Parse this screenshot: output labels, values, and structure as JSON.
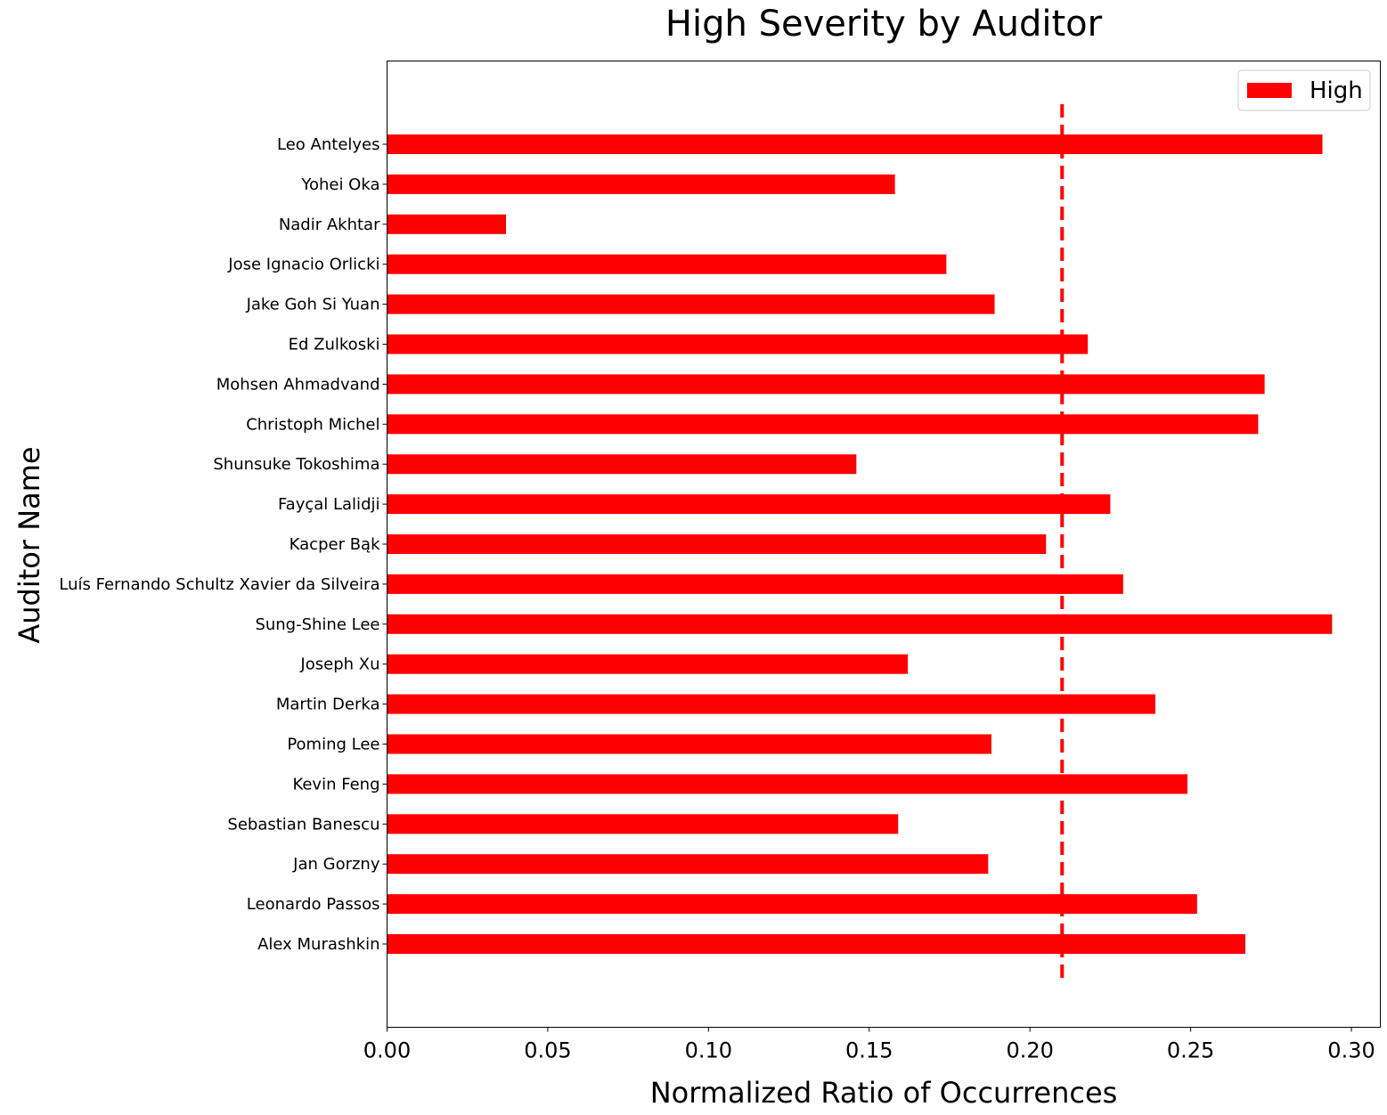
{
  "chart_data": {
    "type": "bar",
    "orientation": "horizontal",
    "title": "High Severity by Auditor",
    "xlabel": "Normalized Ratio of Occurrences",
    "ylabel": "Auditor Name",
    "xlim": [
      0.0,
      0.309
    ],
    "xticks": [
      "0.00",
      "0.05",
      "0.10",
      "0.15",
      "0.20",
      "0.25",
      "0.30"
    ],
    "categories": [
      "Leo Antelyes",
      "Yohei Oka",
      "Nadir Akhtar",
      "Jose Ignacio Orlicki",
      "Jake Goh Si Yuan",
      "Ed Zulkoski",
      "Mohsen Ahmadvand",
      "Christoph Michel",
      "Shunsuke Tokoshima",
      "Fayçal Lalidji",
      "Kacper Bąk",
      "Luís Fernando Schultz Xavier da Silveira",
      "Sung-Shine Lee",
      "Joseph Xu",
      "Martin Derka",
      "Poming Lee",
      "Kevin Feng",
      "Sebastian Banescu",
      "Jan Gorzny",
      "Leonardo Passos",
      "Alex Murashkin"
    ],
    "series": [
      {
        "name": "High",
        "color": "#ff0000",
        "values": [
          0.291,
          0.158,
          0.037,
          0.174,
          0.189,
          0.218,
          0.273,
          0.271,
          0.146,
          0.225,
          0.205,
          0.229,
          0.294,
          0.162,
          0.239,
          0.188,
          0.249,
          0.159,
          0.187,
          0.252,
          0.267
        ]
      }
    ],
    "reference_line": {
      "x": 0.21,
      "style": "dashed",
      "color": "#ff0000"
    },
    "legend": {
      "position": "top-right",
      "entries": [
        "High"
      ]
    },
    "grid": false
  }
}
